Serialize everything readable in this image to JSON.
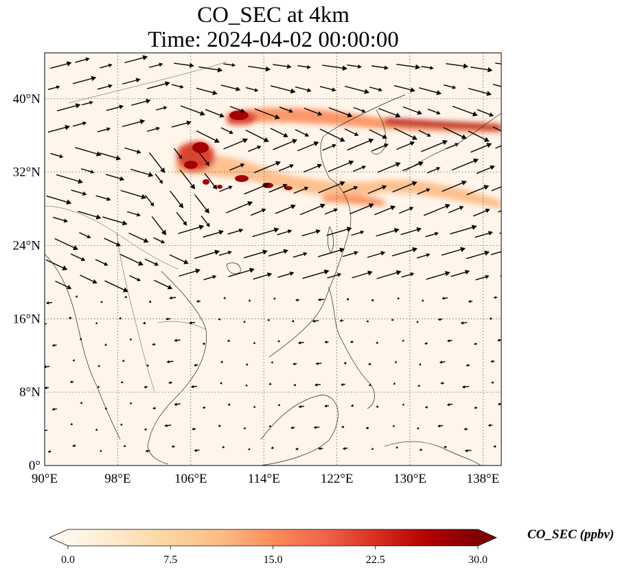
{
  "title": "CO_SEC at 4km",
  "subtitle": "Time: 2024-04-02 00:00:00",
  "map": {
    "lon_range": [
      90,
      140
    ],
    "lat_range": [
      0,
      45
    ],
    "lon_ticks": [
      {
        "value": 90,
        "label": "90°E"
      },
      {
        "value": 98,
        "label": "98°E"
      },
      {
        "value": 106,
        "label": "106°E"
      },
      {
        "value": 114,
        "label": "114°E"
      },
      {
        "value": 122,
        "label": "122°E"
      },
      {
        "value": 130,
        "label": "130°E"
      },
      {
        "value": 138,
        "label": "138°E"
      }
    ],
    "lat_ticks": [
      {
        "value": 0,
        "label": "0°"
      },
      {
        "value": 8,
        "label": "8°N"
      },
      {
        "value": 16,
        "label": "16°N"
      },
      {
        "value": 24,
        "label": "24°N"
      },
      {
        "value": 32,
        "label": "32°N"
      },
      {
        "value": 40,
        "label": "40°N"
      }
    ],
    "gridlines": true,
    "background_color": "#fff5eb",
    "plume_color": "#b30000",
    "wind_vectors": true
  },
  "colorbar": {
    "label": "CO_SEC (ppbv)",
    "min": 0.0,
    "max": 30.0,
    "ticks": [
      "0.0",
      "7.5",
      "15.0",
      "22.5",
      "30.0"
    ],
    "colormap": "OrRd",
    "colors": [
      "#fff7ec",
      "#fee8c8",
      "#fdd49e",
      "#fdbb84",
      "#fc8d59",
      "#ef6548",
      "#d7301f",
      "#b30000",
      "#7f0000"
    ],
    "extend": "both"
  }
}
